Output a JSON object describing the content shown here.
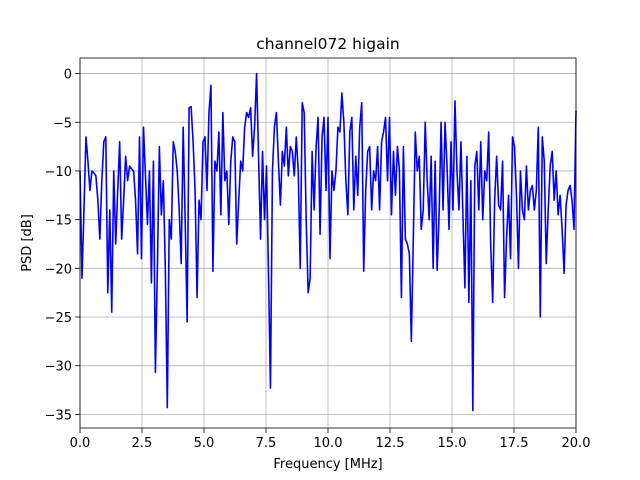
{
  "chart_data": {
    "type": "line",
    "title": "channel072 higain",
    "xlabel": "Frequency [MHz]",
    "ylabel": "PSD [dB]",
    "grid": true,
    "xlim": [
      0,
      20
    ],
    "ylim": [
      -36.4,
      1.6
    ],
    "xticks": [
      {
        "value": 0,
        "label": "0.0"
      },
      2.5,
      {
        "value": 5,
        "label": "5.0"
      },
      7.5,
      {
        "value": 10,
        "label": "10.0"
      },
      12.5,
      {
        "value": 15,
        "label": "15.0"
      },
      17.5,
      {
        "value": 20,
        "label": "20.0"
      }
    ],
    "yticks": [
      0,
      {
        "value": -5,
        "label": "−5"
      },
      {
        "value": -10,
        "label": "−10"
      },
      {
        "value": -15,
        "label": "−15"
      },
      {
        "value": -20,
        "label": "−20"
      },
      {
        "value": -25,
        "label": "−25"
      },
      {
        "value": -30,
        "label": "−30"
      },
      {
        "value": -35,
        "label": "−35"
      }
    ],
    "x": [
      0,
      0.08,
      0.16,
      0.24,
      0.32,
      0.4,
      0.48,
      0.56,
      0.64,
      0.72,
      0.8,
      0.88,
      0.96,
      1.04,
      1.12,
      1.2,
      1.28,
      1.36,
      1.44,
      1.52,
      1.6,
      1.68,
      1.76,
      1.84,
      1.92,
      2,
      2.08,
      2.16,
      2.24,
      2.32,
      2.4,
      2.48,
      2.56,
      2.64,
      2.72,
      2.8,
      2.88,
      2.96,
      3.04,
      3.12,
      3.2,
      3.28,
      3.36,
      3.44,
      3.52,
      3.6,
      3.68,
      3.76,
      3.84,
      3.92,
      4,
      4.08,
      4.16,
      4.24,
      4.32,
      4.4,
      4.48,
      4.56,
      4.64,
      4.72,
      4.8,
      4.88,
      4.96,
      5.04,
      5.12,
      5.2,
      5.28,
      5.36,
      5.44,
      5.52,
      5.6,
      5.68,
      5.76,
      5.84,
      5.92,
      6,
      6.08,
      6.16,
      6.24,
      6.32,
      6.4,
      6.48,
      6.56,
      6.64,
      6.72,
      6.8,
      6.88,
      6.96,
      7.04,
      7.12,
      7.2,
      7.28,
      7.36,
      7.44,
      7.52,
      7.6,
      7.68,
      7.76,
      7.84,
      7.92,
      8,
      8.08,
      8.16,
      8.24,
      8.32,
      8.4,
      8.48,
      8.56,
      8.64,
      8.72,
      8.8,
      8.88,
      8.96,
      9.04,
      9.12,
      9.2,
      9.28,
      9.36,
      9.44,
      9.52,
      9.6,
      9.68,
      9.76,
      9.84,
      9.92,
      10,
      10.08,
      10.16,
      10.24,
      10.32,
      10.4,
      10.48,
      10.56,
      10.64,
      10.72,
      10.8,
      10.88,
      10.96,
      11.04,
      11.12,
      11.2,
      11.28,
      11.36,
      11.44,
      11.52,
      11.6,
      11.68,
      11.76,
      11.84,
      11.92,
      12,
      12.08,
      12.16,
      12.24,
      12.32,
      12.4,
      12.48,
      12.56,
      12.64,
      12.72,
      12.8,
      12.88,
      12.96,
      13.04,
      13.12,
      13.2,
      13.28,
      13.36,
      13.44,
      13.52,
      13.6,
      13.68,
      13.76,
      13.84,
      13.92,
      14,
      14.08,
      14.16,
      14.24,
      14.32,
      14.4,
      14.48,
      14.56,
      14.64,
      14.72,
      14.8,
      14.88,
      14.96,
      15.04,
      15.12,
      15.2,
      15.28,
      15.36,
      15.44,
      15.52,
      15.6,
      15.68,
      15.76,
      15.84,
      15.92,
      16,
      16.08,
      16.16,
      16.24,
      16.32,
      16.4,
      16.48,
      16.56,
      16.64,
      16.72,
      16.8,
      16.88,
      16.96,
      17.04,
      17.12,
      17.2,
      17.28,
      17.36,
      17.44,
      17.52,
      17.6,
      17.68,
      17.76,
      17.84,
      17.92,
      18,
      18.08,
      18.16,
      18.24,
      18.32,
      18.4,
      18.48,
      18.56,
      18.64,
      18.72,
      18.8,
      18.88,
      18.96,
      19.04,
      19.12,
      19.2,
      19.28,
      19.36,
      19.44,
      19.52,
      19.6,
      19.68,
      19.76,
      19.84,
      19.92,
      20
    ],
    "series": [
      {
        "color": "#0000ff",
        "values": [
          -10,
          -21,
          -14,
          -6.5,
          -9,
          -12,
          -10,
          -10.2,
          -10.5,
          -13,
          -17,
          -11,
          -7,
          -6.5,
          -22.5,
          -14,
          -24.5,
          -10,
          -17.5,
          -12,
          -7,
          -17,
          -13,
          -8.5,
          -11,
          -9.5,
          -9.8,
          -10,
          -13,
          -18.5,
          -6.5,
          -19,
          -5.5,
          -10.5,
          -15.5,
          -10,
          -21.5,
          -9,
          -30.7,
          -20,
          -7.5,
          -14.5,
          -11,
          -20,
          -34.3,
          -15,
          -17,
          -7,
          -8,
          -10,
          -14,
          -19.5,
          -5.5,
          -15,
          -25.5,
          -3.5,
          -3.4,
          -7,
          -12,
          -23,
          -13,
          -15,
          -7,
          -6.5,
          -12,
          -4,
          -1.2,
          -20.3,
          -9,
          -10,
          -6,
          -14.5,
          -4,
          -11,
          -10,
          -15.5,
          -9,
          -6.5,
          -7,
          -17.5,
          -13,
          -9,
          -10,
          -5.5,
          -4,
          -4.5,
          -3.5,
          -8.5,
          -5.5,
          0,
          -8.5,
          -17,
          -8,
          -15,
          -9.5,
          -20.5,
          -32.3,
          -10,
          -5.5,
          -4,
          -9,
          -13.5,
          -8,
          -9.5,
          -5.5,
          -10.5,
          -7.5,
          -8,
          -10.5,
          -6.5,
          -10,
          -20,
          -3,
          -4,
          -15,
          -22.5,
          -21,
          -8,
          -14,
          -7.5,
          -4.5,
          -16.5,
          -6.5,
          -4.5,
          -12,
          -4.5,
          -19,
          -10,
          -12,
          -10,
          -5.5,
          -6,
          -2,
          -5,
          -11,
          -14.5,
          -6,
          -4.5,
          -14,
          -8.5,
          -12.5,
          -5.5,
          -3,
          -20.3,
          -12,
          -8,
          -7.5,
          -14,
          -10,
          -11,
          -7.5,
          -14,
          -7,
          -6,
          -4.5,
          -11,
          -4.5,
          -14.5,
          -8,
          -12.5,
          -7.5,
          -10,
          -23,
          -7.5,
          -17,
          -17.5,
          -18.5,
          -27.5,
          -17,
          -6,
          -10,
          -8.5,
          -16,
          -14,
          -5,
          -11,
          -15,
          -8.5,
          -20,
          -9,
          -20.2,
          -14.5,
          -5,
          -14,
          -5,
          -9.5,
          -16,
          -7,
          -14,
          -2.8,
          -10,
          -14,
          -7,
          -14.5,
          -22,
          -8.5,
          -23.5,
          -11,
          -34.6,
          -9.5,
          -8,
          -14,
          -7,
          -15,
          -10,
          -11,
          -6,
          -17.5,
          -23.5,
          -13,
          -8.5,
          -13.5,
          -14,
          -9,
          -23,
          -17,
          -12.5,
          -19,
          -6.5,
          -7.5,
          -12.5,
          -20,
          -10,
          -14,
          -15,
          -9.5,
          -14,
          -12,
          -11.5,
          -14,
          -12,
          -5.5,
          -25,
          -6.5,
          -9,
          -19.5,
          -14,
          -9.5,
          -8,
          -13,
          -10,
          -14.5,
          -12.5,
          -16,
          -20.5,
          -13.5,
          -12,
          -11.5,
          -13,
          -16,
          -3.8
        ]
      }
    ]
  }
}
